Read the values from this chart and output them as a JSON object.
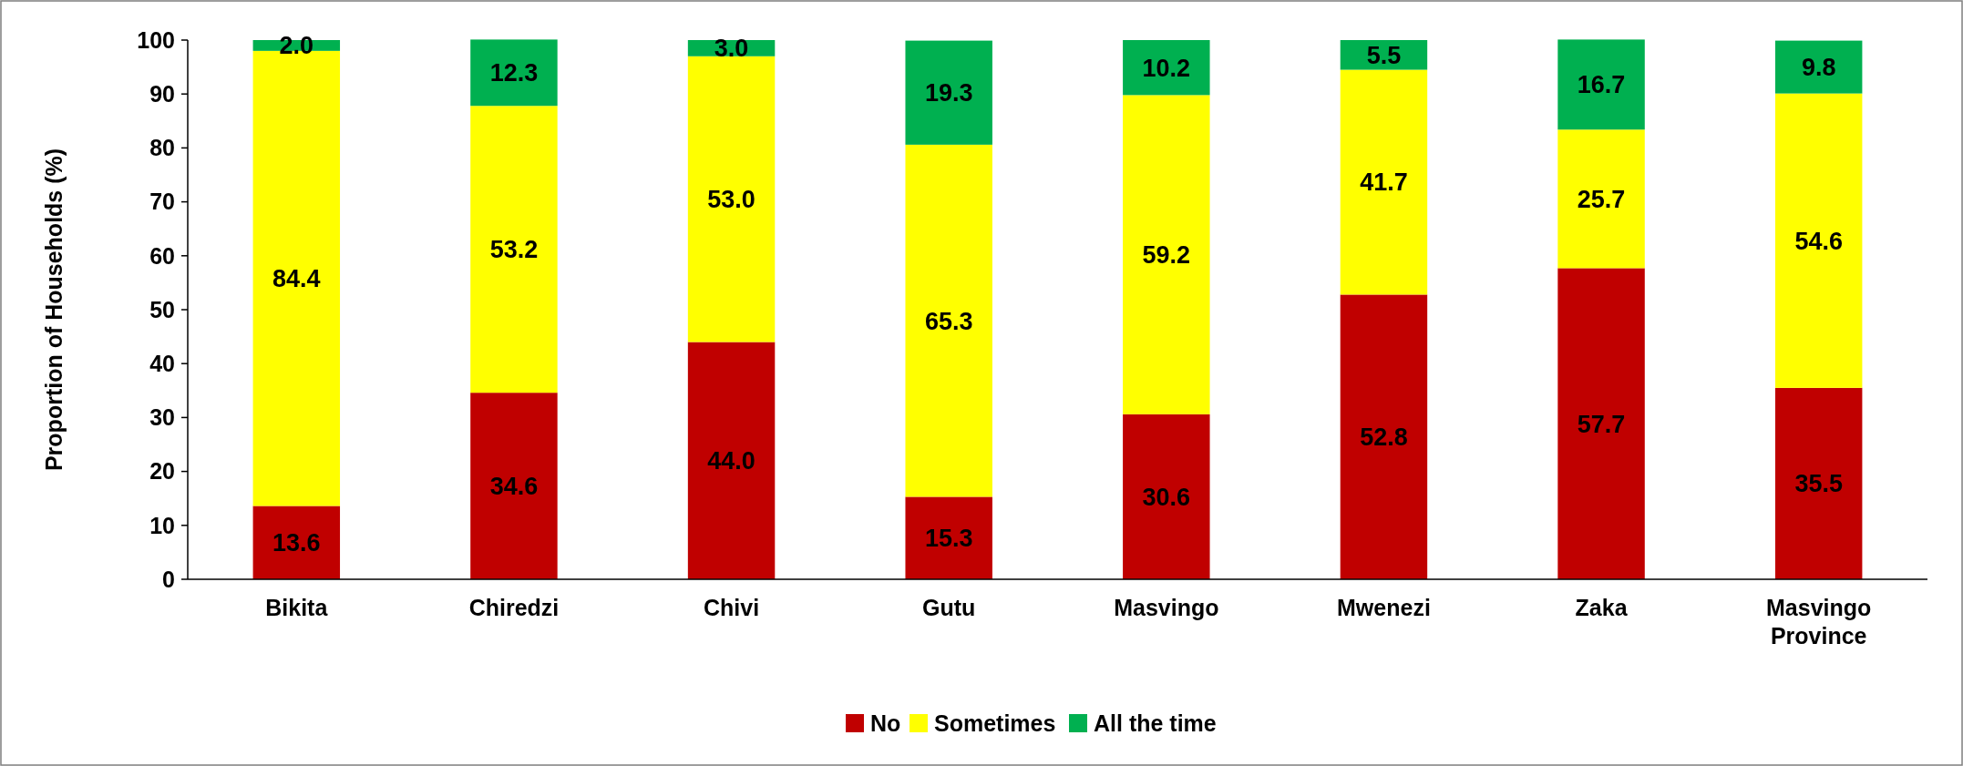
{
  "chart_data": {
    "type": "bar",
    "stacked": true,
    "ylabel": "Proportion of Households (%)",
    "categories": [
      "Bikita",
      "Chiredzi",
      "Chivi",
      "Gutu",
      "Masvingo",
      "Mwenezi",
      "Zaka",
      "Masvingo Province"
    ],
    "series": [
      {
        "name": "No",
        "color": "#c00000",
        "values": [
          13.6,
          34.6,
          44.0,
          15.3,
          30.6,
          52.8,
          57.7,
          35.5
        ],
        "value_labels": [
          "13.6",
          "34.6",
          "44.0",
          "15.3",
          "30.6",
          "52.8",
          "57.7",
          "35.5"
        ]
      },
      {
        "name": "Sometimes",
        "color": "#ffff00",
        "values": [
          84.4,
          53.2,
          53.0,
          65.3,
          59.2,
          41.7,
          25.7,
          54.6
        ],
        "value_labels": [
          "84.4",
          "53.2",
          "53.0",
          "65.3",
          "59.2",
          "41.7",
          "25.7",
          "54.6"
        ]
      },
      {
        "name": "All the time",
        "color": "#00b050",
        "values": [
          2.0,
          12.3,
          3.0,
          19.3,
          10.2,
          5.5,
          16.7,
          9.8
        ],
        "value_labels": [
          "2.0",
          "12.3",
          "3.0",
          "19.3",
          "10.2",
          "5.5",
          "16.7",
          "9.8"
        ]
      }
    ],
    "ylim": [
      0,
      100
    ],
    "yticks": [
      0,
      10,
      20,
      30,
      40,
      50,
      60,
      70,
      80,
      90,
      100
    ],
    "legend": "bottom",
    "grid": false
  }
}
